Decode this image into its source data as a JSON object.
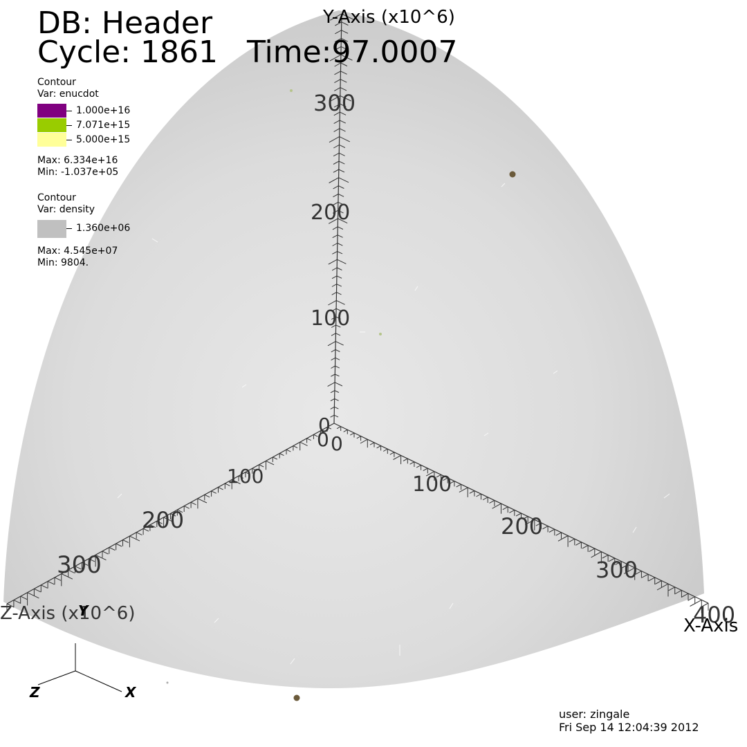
{
  "header": {
    "db_label": "DB: Header",
    "cycle_label": "Cycle: 1861",
    "time_label": "Time:97.0007"
  },
  "legend_enucdot": {
    "title": "Contour",
    "var": "Var: enucdot",
    "levels": [
      {
        "label": "1.000e+16",
        "color": "#800080"
      },
      {
        "label": "7.071e+15",
        "color": "#99cc00"
      },
      {
        "label": "5.000e+15",
        "color": "#ffff99"
      }
    ],
    "max": "Max: 6.334e+16",
    "min": "Min: -1.037e+05"
  },
  "legend_density": {
    "title": "Contour",
    "var": "Var: density",
    "levels": [
      {
        "label": "1.360e+06",
        "color": "#c0c0c0"
      }
    ],
    "max": "Max: 4.545e+07",
    "min": "Min: 9804."
  },
  "axes": {
    "y_title": "Y-Axis (x10^6)",
    "z_title": "Z-Axis (x10^6)",
    "x_title": "X-Axis",
    "y_ticks": [
      "0",
      "100",
      "200",
      "300"
    ],
    "z_ticks": [
      "0",
      "100",
      "200",
      "300"
    ],
    "x_ticks": [
      "0",
      "100",
      "200",
      "300",
      "400"
    ]
  },
  "triad": {
    "x": "X",
    "y": "Y",
    "z": "Z"
  },
  "footer": {
    "user": "user: zingale",
    "date": "Fri Sep 14 12:04:39 2012"
  },
  "colors": {
    "surface_center": "#e6e6e6",
    "surface_edge": "#c8c8c8",
    "axis_line": "#333333",
    "axis_label": "#333333",
    "blob": "#6b5a3a"
  }
}
